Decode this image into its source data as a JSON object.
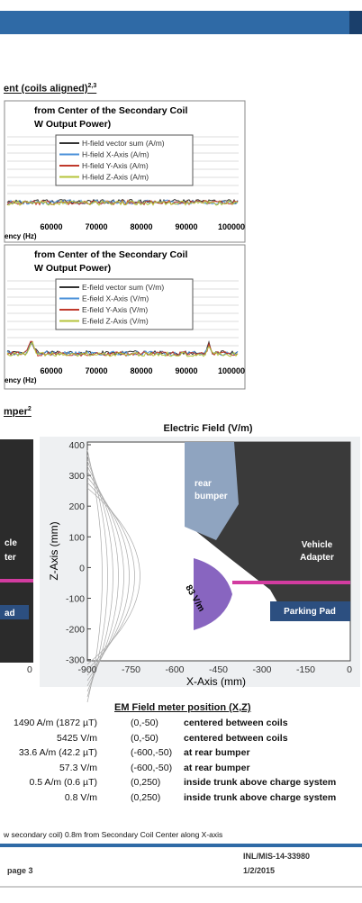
{
  "section_heading": {
    "text": "ent (coils aligned)",
    "sup": "2,3"
  },
  "chart1": {
    "title": [
      "from Center of the Secondary Coil",
      "W Output Power)"
    ],
    "legend": [
      "H-field vector sum (A/m)",
      "H-field X-Axis (A/m)",
      "H-field Y-Axis (A/m)",
      "H-field Z-Axis (A/m)"
    ],
    "xticks": [
      "60000",
      "70000",
      "80000",
      "90000",
      "100000"
    ],
    "xlabel": "ency (Hz)"
  },
  "chart2": {
    "title": [
      "from Center of the Secondary Coil",
      "W Output Power)"
    ],
    "legend": [
      "E-field vector sum (V/m)",
      "E-field X-Axis (V/m)",
      "E-field Y-Axis (V/m)",
      "E-field Z-Axis (V/m)"
    ],
    "xticks": [
      "60000",
      "70000",
      "80000",
      "90000",
      "100000"
    ],
    "xlabel": "ency (Hz)"
  },
  "subsection_heading": {
    "text": "mper",
    "sup": "2"
  },
  "field_plot": {
    "title": "Electric Field (V/m)",
    "ylabel": "Z-Axis (mm)",
    "xlabel": "X-Axis (mm)",
    "yticks": [
      "400",
      "300",
      "200",
      "100",
      "0",
      "-100",
      "-200",
      "-300"
    ],
    "xticks": [
      "-900",
      "-750",
      "-600",
      "-450",
      "-300",
      "-150",
      "0"
    ],
    "photo_labels": [
      "rear",
      "bumper",
      "Vehicle",
      "Adapter",
      "Parking Pad"
    ],
    "contour_label": "83 V/m"
  },
  "left_image": {
    "labels": [
      "cle",
      "ter",
      "ad"
    ],
    "tick": "0"
  },
  "table": {
    "header": "EM Field meter position (X,Z)",
    "rows": [
      [
        "1490 A/m (1872 µT)",
        "(0,-50)",
        "centered between coils"
      ],
      [
        "5425 V/m",
        "(0,-50)",
        "centered between coils"
      ],
      [
        "33.6 A/m (42.2 µT)",
        "(-600,-50)",
        "at rear bumper"
      ],
      [
        "57.3 V/m",
        "(-600,-50)",
        "at rear bumper"
      ],
      [
        "0.5 A/m (0.6 µT)",
        "(0,250)",
        "inside trunk above charge system"
      ],
      [
        "0.8 V/m",
        "(0,250)",
        "inside trunk above charge system"
      ]
    ]
  },
  "footnote": "w secondary coil) 0.8m from Secondary Coil Center along X-axis",
  "footer": {
    "page": "page 3",
    "doc_id": "INL/MIS-14-33980",
    "date": "1/2/2015"
  }
}
